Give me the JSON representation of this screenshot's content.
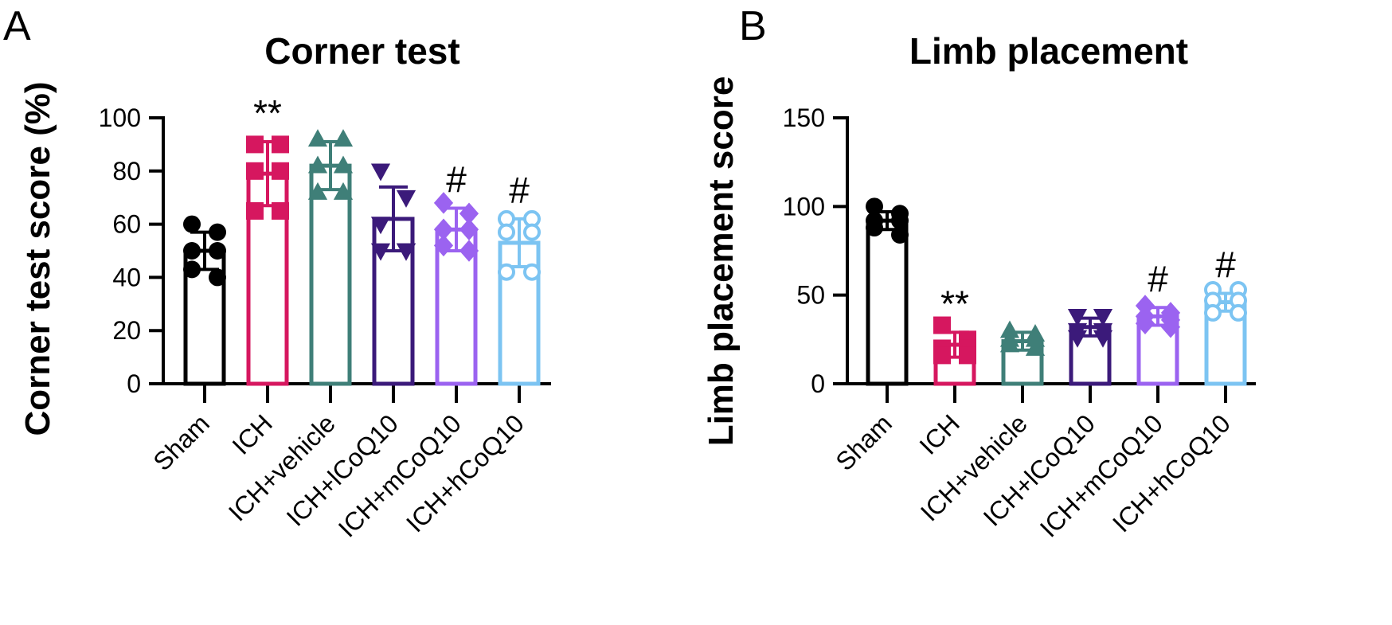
{
  "chart_data": [
    {
      "panel": "A",
      "type": "bar",
      "title": "Corner test",
      "xlabel": "",
      "ylabel": "Corner test score (%)",
      "ylim": [
        0,
        100
      ],
      "yticks": [
        0,
        20,
        40,
        60,
        80,
        100
      ],
      "grid": false,
      "categories": [
        "Sham",
        "ICH",
        "ICH+vehicle",
        "ICH+lCoQ10",
        "ICH+mCoQ10",
        "ICH+hCoQ10"
      ],
      "colors": [
        "#000000",
        "#d6175f",
        "#3f7f78",
        "#3b1a7a",
        "#9b63f0",
        "#7cc4f2"
      ],
      "markers": [
        "circle",
        "square",
        "triangle-up",
        "triangle-down",
        "diamond",
        "circle-open"
      ],
      "values": [
        50,
        79,
        82,
        62,
        58,
        53
      ],
      "sd": [
        7,
        12,
        9,
        12,
        8,
        9
      ],
      "points": [
        [
          60,
          57,
          50,
          50,
          43,
          40
        ],
        [
          90,
          90,
          80,
          80,
          65,
          65
        ],
        [
          92,
          92,
          82,
          82,
          72,
          72
        ],
        [
          80,
          70,
          60,
          50,
          50,
          50
        ],
        [
          68,
          64,
          58,
          58,
          52,
          50
        ],
        [
          62,
          62,
          57,
          57,
          42,
          42
        ]
      ],
      "annotations": [
        "",
        "**",
        "",
        "",
        "#",
        "#"
      ]
    },
    {
      "panel": "B",
      "type": "bar",
      "title": "Limb placement",
      "xlabel": "",
      "ylabel": "Limb placement score",
      "ylim": [
        0,
        150
      ],
      "yticks": [
        0,
        50,
        100,
        150
      ],
      "grid": false,
      "categories": [
        "Sham",
        "ICH",
        "ICH+vehicle",
        "ICH+lCoQ10",
        "ICH+mCoQ10",
        "ICH+hCoQ10"
      ],
      "colors": [
        "#000000",
        "#d6175f",
        "#3f7f78",
        "#3b1a7a",
        "#9b63f0",
        "#7cc4f2"
      ],
      "markers": [
        "circle",
        "square",
        "triangle-up",
        "triangle-down",
        "diamond",
        "circle-open"
      ],
      "values": [
        92,
        22,
        24,
        32,
        38,
        46
      ],
      "sd": [
        5,
        7,
        5,
        5,
        5,
        5
      ],
      "points": [
        [
          100,
          96,
          92,
          92,
          88,
          84
        ],
        [
          33,
          25,
          20,
          20,
          16,
          16
        ],
        [
          30,
          28,
          25,
          25,
          22,
          20
        ],
        [
          38,
          38,
          30,
          30,
          26,
          26
        ],
        [
          44,
          40,
          38,
          36,
          34,
          32
        ],
        [
          53,
          53,
          47,
          47,
          40,
          40
        ]
      ],
      "annotations": [
        "",
        "**",
        "",
        "",
        "#",
        "#"
      ]
    }
  ]
}
